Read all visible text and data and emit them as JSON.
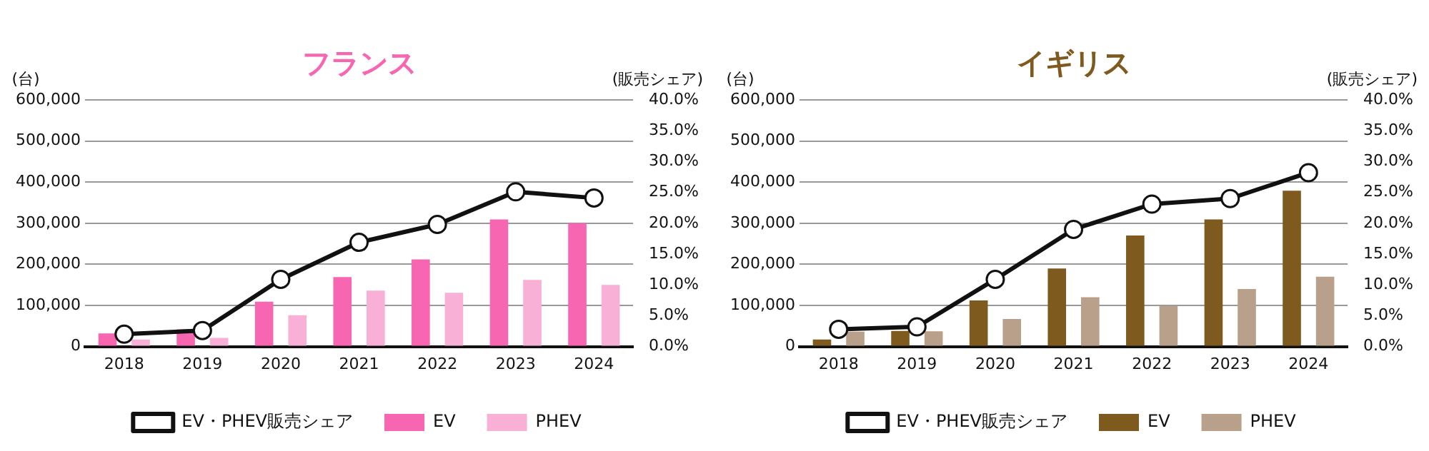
{
  "chart_data": [
    {
      "type": "bar",
      "title": "フランス",
      "ylabel": "(台)",
      "y2label": "(販売シェア)",
      "categories": [
        "2018",
        "2019",
        "2020",
        "2021",
        "2022",
        "2023",
        "2024"
      ],
      "series": [
        {
          "name": "EV",
          "color": "#f766b0",
          "values": [
            32000,
            42000,
            109000,
            169000,
            212000,
            309000,
            300000
          ]
        },
        {
          "name": "PHEV",
          "color": "#f9b0d6",
          "values": [
            17000,
            21000,
            76000,
            136000,
            131000,
            162000,
            150000
          ]
        },
        {
          "name": "EV・PHEV販売シェア",
          "type": "line",
          "axis": "y2",
          "color": "#111111",
          "values": [
            2.0,
            2.6,
            10.9,
            16.9,
            19.8,
            25.1,
            24.1
          ]
        }
      ],
      "ylim": [
        0,
        600000
      ],
      "yticks": [
        0,
        {
          "value": 100000,
          "label": "100,000"
        },
        {
          "value": 200000,
          "label": "200,000"
        },
        {
          "value": 300000,
          "label": "300,000"
        },
        {
          "value": 400000,
          "label": "400,000"
        },
        {
          "value": 500000,
          "label": "500,000"
        },
        {
          "value": 600000,
          "label": "600,000"
        }
      ],
      "y2lim": [
        0,
        40
      ],
      "y2ticks": [
        {
          "value": 0,
          "label": "0.0%"
        },
        {
          "value": 5,
          "label": "5.0%"
        },
        {
          "value": 10,
          "label": "10.0%"
        },
        {
          "value": 15,
          "label": "15.0%"
        },
        {
          "value": 20,
          "label": "20.0%"
        },
        {
          "value": 25,
          "label": "25.0%"
        },
        {
          "value": 30,
          "label": "30.0%"
        },
        {
          "value": 35,
          "label": "35.0%"
        },
        {
          "value": 40,
          "label": "40.0%"
        }
      ],
      "grid": "y",
      "legend": "bottom",
      "marker": "circle"
    },
    {
      "type": "bar",
      "title": "イギリス",
      "ylabel": "(台)",
      "y2label": "(販売シェア)",
      "categories": [
        "2018",
        "2019",
        "2020",
        "2021",
        "2022",
        "2023",
        "2024"
      ],
      "series": [
        {
          "name": "EV",
          "color": "#7f5a1f",
          "values": [
            17000,
            38000,
            112000,
            190000,
            270000,
            309000,
            379000
          ]
        },
        {
          "name": "PHEV",
          "color": "#b9a08a",
          "values": [
            36000,
            37000,
            67000,
            120000,
            99000,
            140000,
            170000
          ]
        },
        {
          "name": "EV・PHEV販売シェア",
          "type": "line",
          "axis": "y2",
          "color": "#111111",
          "values": [
            2.8,
            3.2,
            10.9,
            19.0,
            23.1,
            24.0,
            28.2
          ]
        }
      ],
      "ylim": [
        0,
        600000
      ],
      "yticks": [
        0,
        {
          "value": 100000,
          "label": "100,000"
        },
        {
          "value": 200000,
          "label": "200,000"
        },
        {
          "value": 300000,
          "label": "300,000"
        },
        {
          "value": 400000,
          "label": "400,000"
        },
        {
          "value": 500000,
          "label": "500,000"
        },
        {
          "value": 600000,
          "label": "600,000"
        }
      ],
      "y2lim": [
        0,
        40
      ],
      "y2ticks": [
        {
          "value": 0,
          "label": "0.0%"
        },
        {
          "value": 5,
          "label": "5.0%"
        },
        {
          "value": 10,
          "label": "10.0%"
        },
        {
          "value": 15,
          "label": "15.0%"
        },
        {
          "value": 20,
          "label": "20.0%"
        },
        {
          "value": 25,
          "label": "25.0%"
        },
        {
          "value": 30,
          "label": "30.0%"
        },
        {
          "value": 35,
          "label": "35.0%"
        },
        {
          "value": 40,
          "label": "40.0%"
        }
      ],
      "grid": "y",
      "legend": "bottom",
      "marker": "circle"
    }
  ]
}
